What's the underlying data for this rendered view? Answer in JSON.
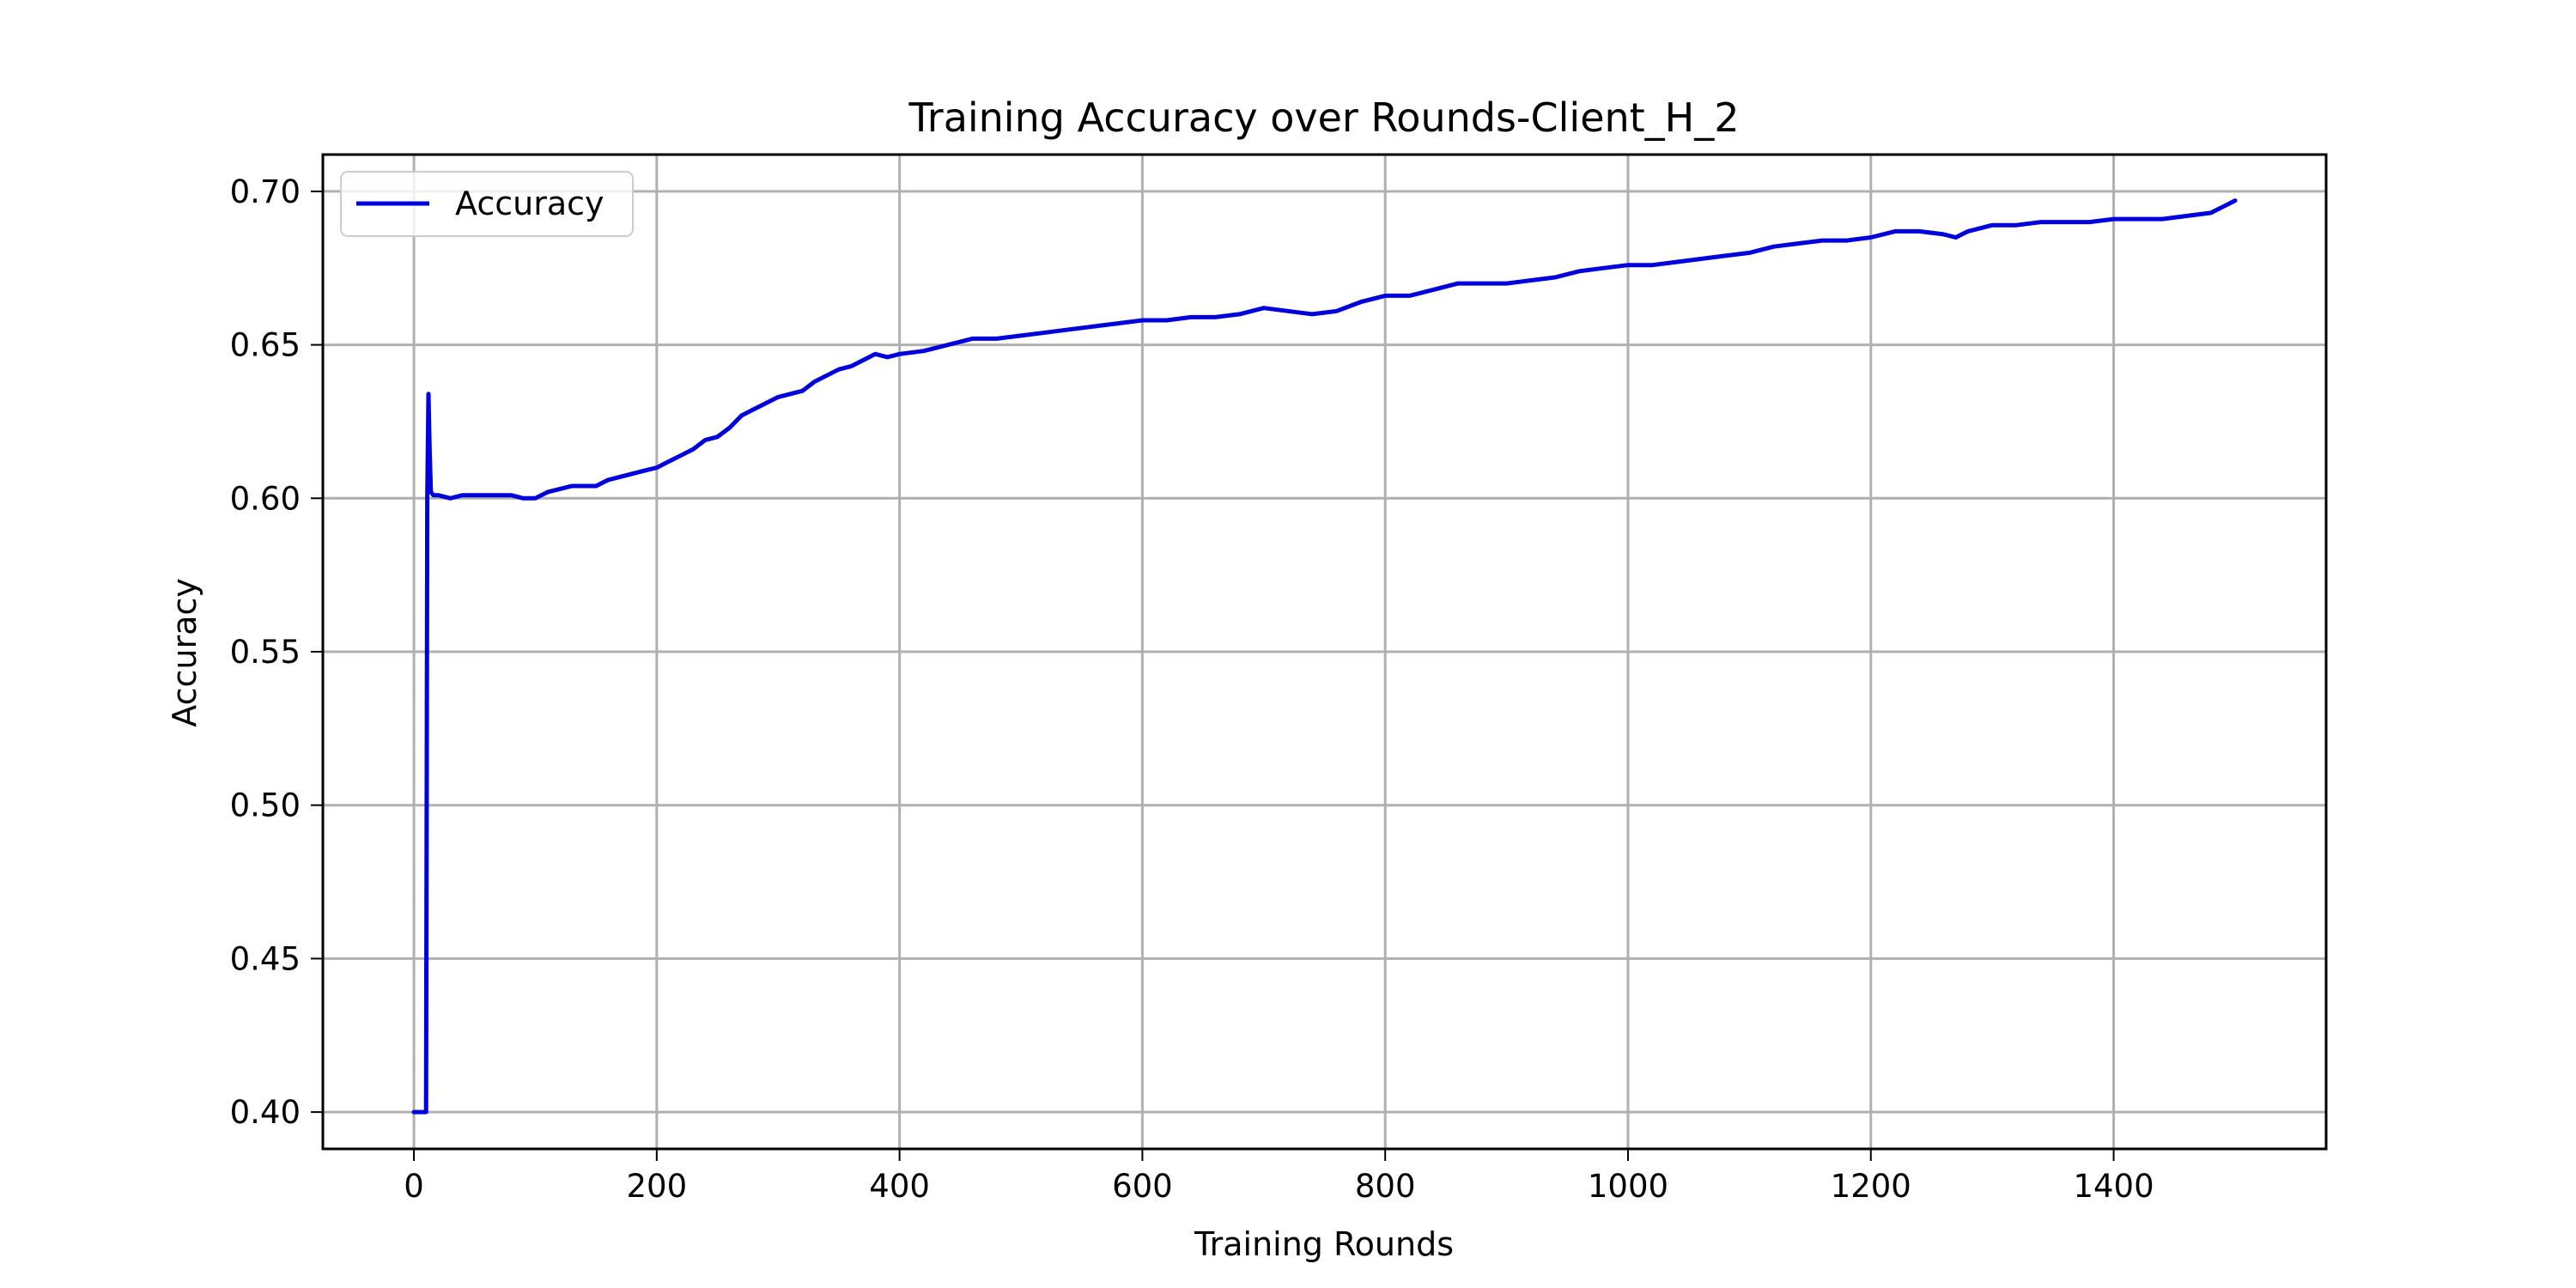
{
  "chart_data": {
    "type": "line",
    "title": "Training Accuracy over Rounds-Client_H_2",
    "xlabel": "Training Rounds",
    "ylabel": "Accuracy",
    "xlim": [
      -75,
      1575
    ],
    "ylim": [
      0.388,
      0.712
    ],
    "xticks": [
      0,
      200,
      400,
      600,
      800,
      1000,
      1200,
      1400
    ],
    "xtick_labels": [
      "0",
      "200",
      "400",
      "600",
      "800",
      "1000",
      "1200",
      "1400"
    ],
    "yticks": [
      0.4,
      0.45,
      0.5,
      0.55,
      0.6,
      0.65,
      0.7
    ],
    "ytick_labels": [
      "0.40",
      "0.45",
      "0.50",
      "0.55",
      "0.60",
      "0.65",
      "0.70"
    ],
    "grid": true,
    "legend": {
      "position": "top-left",
      "entries": [
        "Accuracy"
      ]
    },
    "series": [
      {
        "name": "Accuracy",
        "color": "#0000dd",
        "x": [
          0,
          5,
          10,
          11,
          12,
          13,
          14,
          16,
          20,
          30,
          40,
          50,
          60,
          70,
          80,
          90,
          100,
          110,
          120,
          130,
          140,
          150,
          160,
          170,
          180,
          190,
          200,
          210,
          220,
          230,
          240,
          250,
          260,
          270,
          280,
          290,
          300,
          310,
          320,
          330,
          340,
          350,
          360,
          370,
          380,
          390,
          400,
          420,
          440,
          460,
          480,
          500,
          520,
          540,
          560,
          580,
          600,
          620,
          640,
          660,
          680,
          700,
          720,
          740,
          760,
          780,
          800,
          820,
          840,
          860,
          880,
          900,
          920,
          940,
          960,
          980,
          1000,
          1020,
          1040,
          1060,
          1080,
          1100,
          1120,
          1140,
          1160,
          1180,
          1200,
          1220,
          1240,
          1260,
          1270,
          1280,
          1300,
          1320,
          1340,
          1360,
          1380,
          1400,
          1420,
          1440,
          1460,
          1480,
          1490,
          1500
        ],
        "values": [
          0.4,
          0.4,
          0.4,
          0.6,
          0.634,
          0.615,
          0.602,
          0.601,
          0.601,
          0.6,
          0.601,
          0.601,
          0.601,
          0.601,
          0.601,
          0.6,
          0.6,
          0.602,
          0.603,
          0.604,
          0.604,
          0.604,
          0.606,
          0.607,
          0.608,
          0.609,
          0.61,
          0.612,
          0.614,
          0.616,
          0.619,
          0.62,
          0.623,
          0.627,
          0.629,
          0.631,
          0.633,
          0.634,
          0.635,
          0.638,
          0.64,
          0.642,
          0.643,
          0.645,
          0.647,
          0.646,
          0.647,
          0.648,
          0.65,
          0.652,
          0.652,
          0.653,
          0.654,
          0.655,
          0.656,
          0.657,
          0.658,
          0.658,
          0.659,
          0.659,
          0.66,
          0.662,
          0.661,
          0.66,
          0.661,
          0.664,
          0.666,
          0.666,
          0.668,
          0.67,
          0.67,
          0.67,
          0.671,
          0.672,
          0.674,
          0.675,
          0.676,
          0.676,
          0.677,
          0.678,
          0.679,
          0.68,
          0.682,
          0.683,
          0.684,
          0.684,
          0.685,
          0.687,
          0.687,
          0.686,
          0.685,
          0.687,
          0.689,
          0.689,
          0.69,
          0.69,
          0.69,
          0.691,
          0.691,
          0.691,
          0.692,
          0.693,
          0.695,
          0.697
        ]
      }
    ]
  }
}
